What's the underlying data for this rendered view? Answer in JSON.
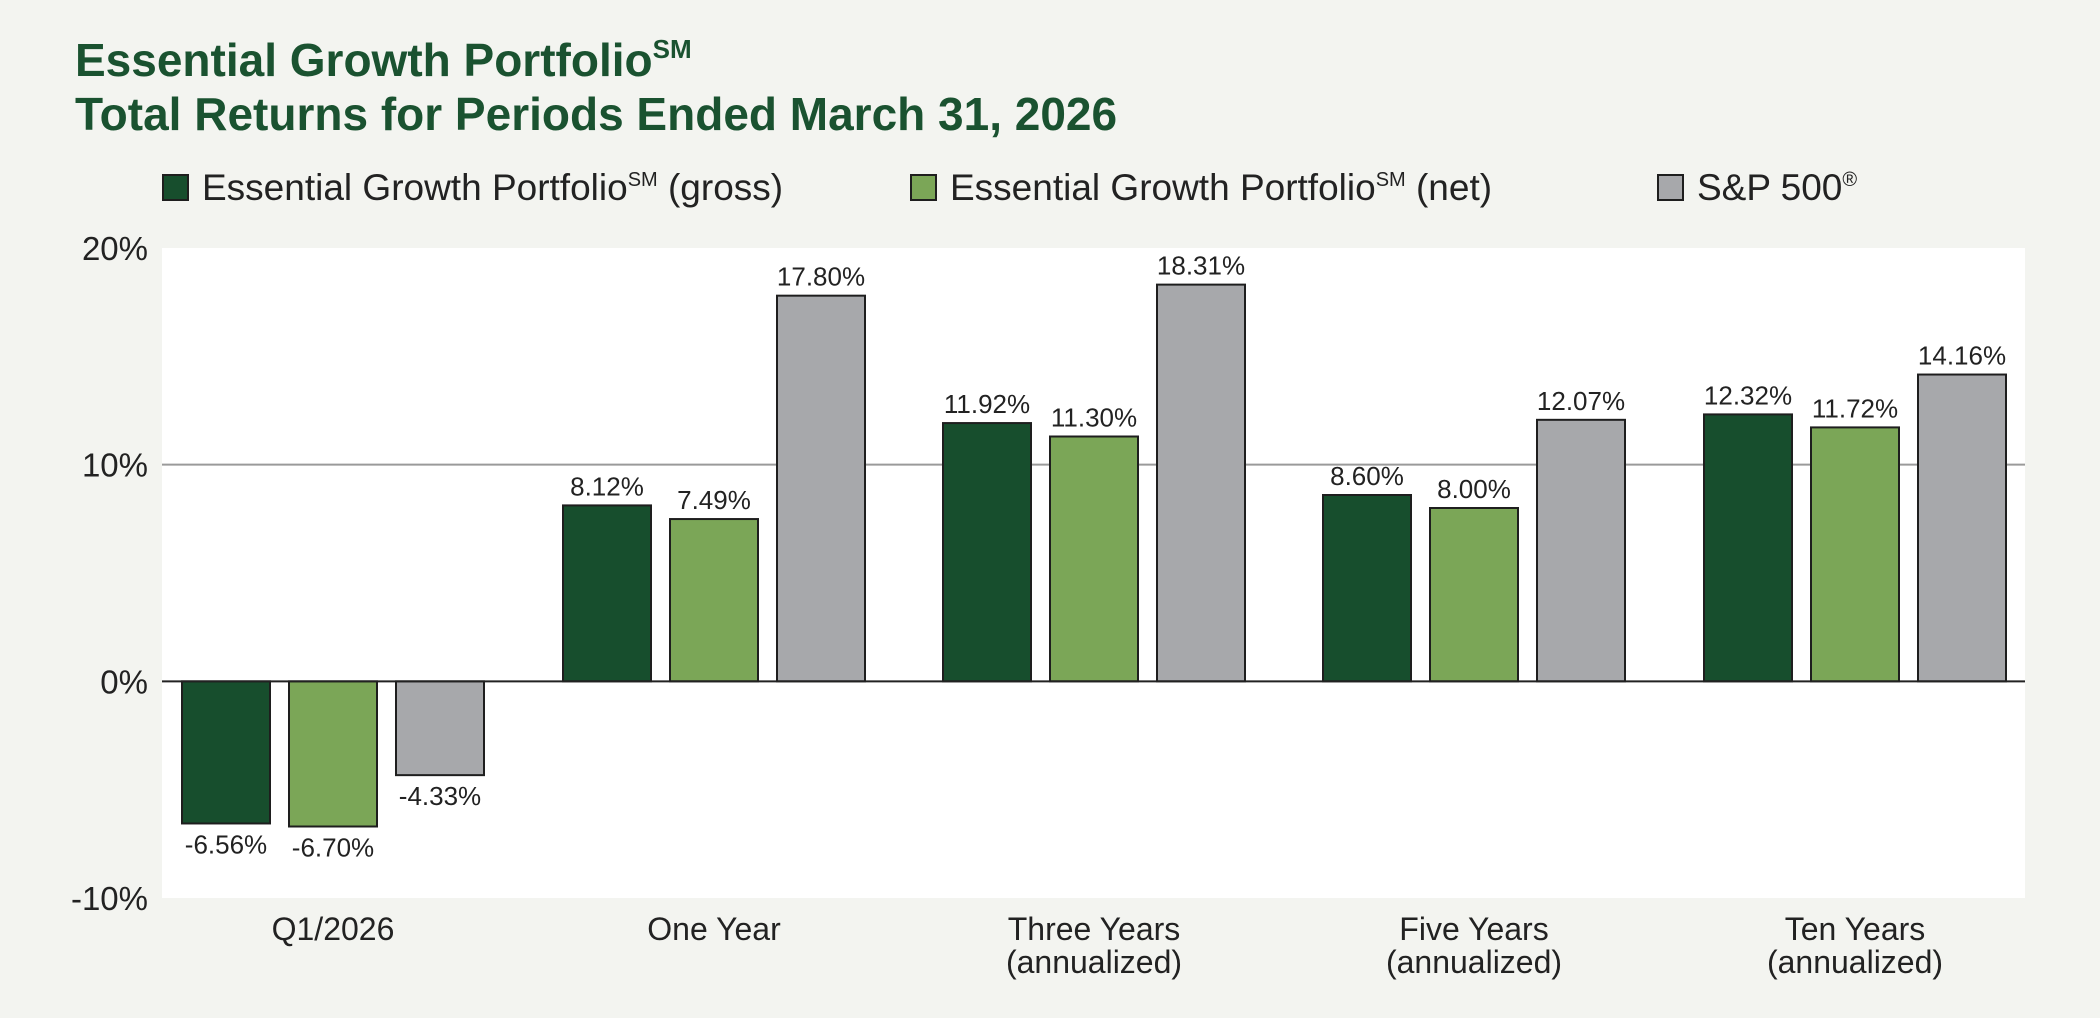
{
  "chart_data": {
    "type": "bar",
    "title_line1": "Essential Growth Portfolio",
    "title_line1_sup": "SM",
    "title_line2": "Total Returns for Periods Ended March 31, 2026",
    "categories": [
      [
        "Q1/2026"
      ],
      [
        "One Year"
      ],
      [
        "Three Years",
        "(annualized)"
      ],
      [
        "Five Years",
        "(annualized)"
      ],
      [
        "Ten Years",
        "(annualized)"
      ]
    ],
    "series": [
      {
        "name": "Essential Growth Portfolio",
        "name_sup": "SM",
        "name_suffix": " (gross)",
        "color": "#174e2d",
        "values": [
          -6.56,
          8.12,
          11.92,
          8.6,
          12.32
        ],
        "labels": [
          "-6.56%",
          "8.12%",
          "11.92%",
          "8.60%",
          "12.32%"
        ]
      },
      {
        "name": "Essential Growth Portfolio",
        "name_sup": "SM",
        "name_suffix": " (net)",
        "color": "#7ba657",
        "values": [
          -6.7,
          7.49,
          11.3,
          8.0,
          11.72
        ],
        "labels": [
          "-6.70%",
          "7.49%",
          "11.30%",
          "8.00%",
          "11.72%"
        ]
      },
      {
        "name": "S&P 500",
        "name_sup": "®",
        "name_suffix": "",
        "color": "#a7a8ab",
        "values": [
          -4.33,
          17.8,
          18.31,
          12.07,
          14.16
        ],
        "labels": [
          "-4.33%",
          "17.80%",
          "18.31%",
          "12.07%",
          "14.16%"
        ]
      }
    ],
    "y_ticks": [
      20,
      10,
      0,
      -10
    ],
    "y_tick_labels": [
      "20%",
      "10%",
      "0%",
      "-10%"
    ],
    "ylim": [
      -10,
      20
    ],
    "gridlines": [
      10
    ],
    "legend_position": "top",
    "colors": {
      "title": "#1a5230",
      "background": "#f3f4f0",
      "plot_background": "#ffffff",
      "gridline": "#9a9a9a",
      "zero_line": "#222222"
    }
  }
}
